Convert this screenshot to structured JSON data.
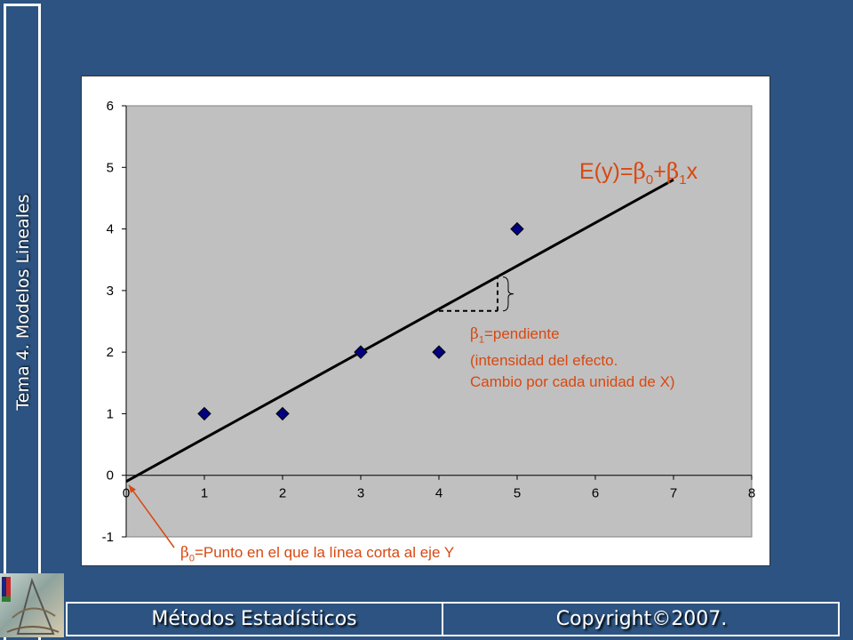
{
  "slide": {
    "side_title": "Tema 4. Modelos Lineales",
    "footer_left": "Métodos Estadísticos",
    "footer_right": "Copyright©2007."
  },
  "chart_data": {
    "type": "scatter",
    "x": [
      1,
      2,
      3,
      4,
      5
    ],
    "y": [
      1,
      1,
      2,
      2,
      4
    ],
    "xlim": [
      0,
      8
    ],
    "ylim": [
      -1,
      6
    ],
    "xticks": [
      "0",
      "1",
      "2",
      "3",
      "4",
      "5",
      "6",
      "7",
      "8"
    ],
    "yticks": [
      "-1",
      "0",
      "1",
      "2",
      "3",
      "4",
      "5",
      "6"
    ],
    "regression_line": {
      "x": [
        0,
        7
      ],
      "y": [
        -0.1,
        4.8
      ]
    },
    "slope_marker": {
      "x": [
        4,
        4.75
      ],
      "y": [
        2.67,
        3.22
      ]
    },
    "grid": false,
    "plot_area_color": "#c0c0c0",
    "marker_color": "#000080",
    "annotation_color": "#d94810",
    "equation": {
      "prefix": "E(y)=",
      "b0": "β",
      "sub0": "0",
      "plus": "+",
      "b1": "β",
      "sub1": "1",
      "suffix": "x"
    },
    "slope_note": {
      "symbol": "β",
      "sub": "1",
      "text": "=pendiente",
      "line2": "(intensidad del efecto.",
      "line3": "Cambio por cada unidad de X)"
    },
    "intercept_note": {
      "symbol": "β",
      "sub": "0",
      "text": "=Punto en el que la línea corta al eje Y"
    }
  }
}
